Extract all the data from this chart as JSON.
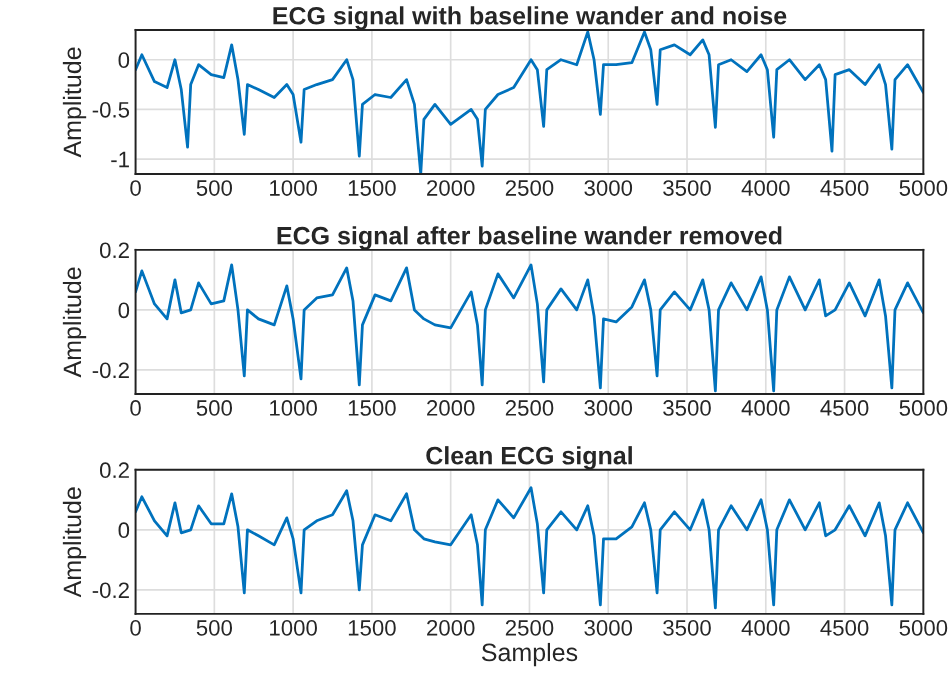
{
  "chart_data": [
    {
      "type": "line",
      "title": "ECG signal with baseline wander and noise",
      "ylabel": "Amplitude",
      "grid": true,
      "xlim": [
        0,
        5000
      ],
      "ylim": [
        -1.15,
        0.3
      ],
      "xticks": [
        0,
        500,
        1000,
        1500,
        2000,
        2500,
        3000,
        3500,
        4000,
        4500,
        5000
      ],
      "yticks": [
        -1,
        -0.5,
        0
      ],
      "x": [
        0,
        40,
        120,
        200,
        250,
        290,
        330,
        350,
        400,
        480,
        560,
        610,
        650,
        690,
        710,
        780,
        880,
        960,
        1000,
        1050,
        1070,
        1150,
        1250,
        1340,
        1380,
        1420,
        1440,
        1520,
        1620,
        1720,
        1770,
        1810,
        1830,
        1900,
        2000,
        2130,
        2170,
        2200,
        2220,
        2300,
        2400,
        2510,
        2550,
        2590,
        2610,
        2700,
        2800,
        2870,
        2910,
        2950,
        2970,
        3050,
        3150,
        3230,
        3270,
        3310,
        3330,
        3420,
        3520,
        3600,
        3640,
        3680,
        3700,
        3780,
        3880,
        3970,
        4010,
        4050,
        4070,
        4150,
        4250,
        4340,
        4380,
        4420,
        4440,
        4530,
        4630,
        4720,
        4760,
        4800,
        4820,
        4900,
        5000
      ],
      "series": [
        {
          "color": "#0072bd",
          "values": [
            -0.1,
            0.05,
            -0.22,
            -0.28,
            0.0,
            -0.3,
            -0.88,
            -0.25,
            -0.05,
            -0.15,
            -0.18,
            0.15,
            -0.2,
            -0.75,
            -0.25,
            -0.3,
            -0.38,
            -0.25,
            -0.35,
            -0.83,
            -0.3,
            -0.25,
            -0.2,
            0.0,
            -0.2,
            -0.97,
            -0.45,
            -0.35,
            -0.38,
            -0.2,
            -0.45,
            -1.15,
            -0.6,
            -0.45,
            -0.65,
            -0.5,
            -0.6,
            -1.07,
            -0.5,
            -0.35,
            -0.28,
            0.0,
            -0.1,
            -0.67,
            -0.1,
            0.0,
            -0.05,
            0.28,
            0.0,
            -0.55,
            -0.05,
            -0.05,
            -0.03,
            0.28,
            0.1,
            -0.45,
            0.1,
            0.15,
            0.05,
            0.2,
            0.05,
            -0.68,
            -0.05,
            0.0,
            -0.12,
            0.05,
            -0.1,
            -0.78,
            -0.1,
            0.0,
            -0.2,
            -0.05,
            -0.2,
            -0.92,
            -0.15,
            -0.1,
            -0.25,
            -0.05,
            -0.25,
            -0.9,
            -0.2,
            -0.05,
            -0.33
          ]
        }
      ]
    },
    {
      "type": "line",
      "title": "ECG signal after baseline wander removed",
      "ylabel": "Amplitude",
      "grid": true,
      "xlim": [
        0,
        5000
      ],
      "ylim": [
        -0.28,
        0.2
      ],
      "xticks": [
        0,
        500,
        1000,
        1500,
        2000,
        2500,
        3000,
        3500,
        4000,
        4500,
        5000
      ],
      "yticks": [
        -0.2,
        0,
        0.2
      ],
      "x": [
        0,
        40,
        120,
        200,
        250,
        290,
        330,
        350,
        400,
        480,
        560,
        610,
        650,
        690,
        710,
        780,
        880,
        960,
        1000,
        1050,
        1070,
        1150,
        1250,
        1340,
        1380,
        1420,
        1440,
        1520,
        1620,
        1720,
        1770,
        1810,
        1830,
        1900,
        2000,
        2130,
        2170,
        2200,
        2220,
        2300,
        2400,
        2510,
        2550,
        2590,
        2610,
        2700,
        2800,
        2870,
        2910,
        2950,
        2970,
        3050,
        3150,
        3230,
        3270,
        3310,
        3330,
        3420,
        3520,
        3600,
        3640,
        3680,
        3700,
        3780,
        3880,
        3970,
        4010,
        4050,
        4070,
        4150,
        4250,
        4340,
        4380,
        4420,
        4440,
        4530,
        4630,
        4720,
        4760,
        4800,
        4820,
        4900,
        5000
      ],
      "series": [
        {
          "color": "#0072bd",
          "values": [
            0.06,
            0.13,
            0.02,
            -0.03,
            0.1,
            -0.01,
            null,
            0.0,
            0.09,
            0.02,
            0.03,
            0.15,
            0.0,
            -0.22,
            0.0,
            -0.03,
            -0.05,
            0.08,
            -0.03,
            -0.23,
            0.0,
            0.04,
            0.05,
            0.14,
            0.03,
            -0.25,
            -0.05,
            0.05,
            0.03,
            0.14,
            0.0,
            null,
            -0.03,
            -0.05,
            -0.06,
            0.06,
            -0.05,
            -0.25,
            0.0,
            0.12,
            0.04,
            0.15,
            0.02,
            -0.24,
            0.0,
            0.07,
            0.0,
            0.1,
            -0.02,
            -0.26,
            -0.03,
            -0.04,
            0.01,
            0.1,
            0.0,
            -0.22,
            0.0,
            0.06,
            0.0,
            0.1,
            0.0,
            -0.27,
            0.0,
            0.09,
            0.0,
            0.11,
            0.0,
            -0.27,
            0.0,
            0.11,
            0.0,
            0.1,
            -0.02,
            null,
            0.0,
            0.09,
            -0.02,
            0.1,
            -0.02,
            -0.26,
            0.0,
            0.09,
            -0.01
          ]
        }
      ]
    },
    {
      "type": "line",
      "title": "Clean ECG signal",
      "xlabel": "Samples",
      "ylabel": "Amplitude",
      "grid": true,
      "xlim": [
        0,
        5000
      ],
      "ylim": [
        -0.28,
        0.2
      ],
      "xticks": [
        0,
        500,
        1000,
        1500,
        2000,
        2500,
        3000,
        3500,
        4000,
        4500,
        5000
      ],
      "yticks": [
        -0.2,
        0,
        0.2
      ],
      "x": [
        0,
        40,
        120,
        200,
        250,
        290,
        330,
        350,
        400,
        480,
        560,
        610,
        650,
        690,
        710,
        780,
        880,
        960,
        1000,
        1050,
        1070,
        1150,
        1250,
        1340,
        1380,
        1420,
        1440,
        1520,
        1620,
        1720,
        1770,
        1810,
        1830,
        1900,
        2000,
        2130,
        2170,
        2200,
        2220,
        2300,
        2400,
        2510,
        2550,
        2590,
        2610,
        2700,
        2800,
        2870,
        2910,
        2950,
        2970,
        3050,
        3150,
        3230,
        3270,
        3310,
        3330,
        3420,
        3520,
        3600,
        3640,
        3680,
        3700,
        3780,
        3880,
        3970,
        4010,
        4050,
        4070,
        4150,
        4250,
        4340,
        4380,
        4420,
        4440,
        4530,
        4630,
        4720,
        4760,
        4800,
        4820,
        4900,
        5000
      ],
      "series": [
        {
          "color": "#0072bd",
          "values": [
            0.06,
            0.11,
            0.03,
            -0.02,
            0.09,
            -0.01,
            null,
            0.0,
            0.08,
            0.02,
            0.02,
            0.12,
            0.01,
            -0.21,
            0.0,
            -0.02,
            -0.05,
            0.04,
            -0.03,
            -0.21,
            0.0,
            0.03,
            0.05,
            0.13,
            0.03,
            -0.2,
            -0.05,
            0.05,
            0.03,
            0.12,
            0.0,
            null,
            -0.03,
            -0.04,
            -0.05,
            0.05,
            -0.05,
            -0.25,
            0.0,
            0.1,
            0.04,
            0.14,
            0.02,
            -0.21,
            0.0,
            0.06,
            0.0,
            0.08,
            -0.02,
            -0.25,
            -0.03,
            -0.03,
            0.01,
            0.09,
            0.0,
            -0.21,
            0.0,
            0.06,
            0.0,
            0.1,
            0.0,
            -0.26,
            0.0,
            0.08,
            0.0,
            0.1,
            0.0,
            -0.25,
            0.0,
            0.1,
            0.0,
            0.09,
            -0.02,
            null,
            0.0,
            0.08,
            -0.02,
            0.09,
            -0.02,
            -0.25,
            0.0,
            0.09,
            -0.01
          ]
        }
      ]
    }
  ]
}
